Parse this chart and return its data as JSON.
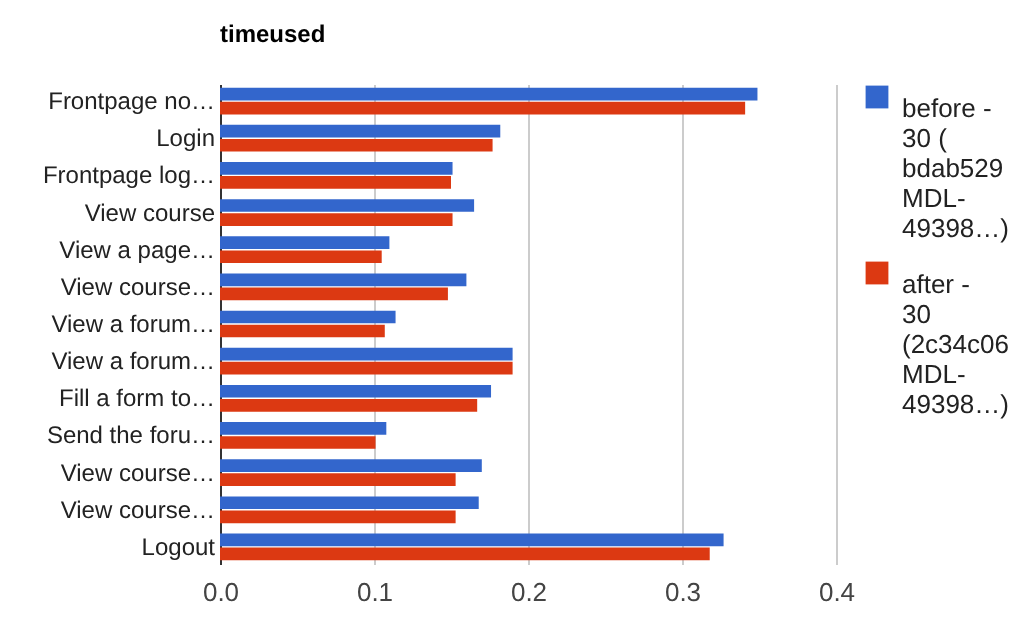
{
  "chart_data": {
    "type": "bar",
    "orientation": "horizontal",
    "title": "timeused",
    "categories": [
      "Frontpage no…",
      "Login",
      "Frontpage log…",
      "View course",
      "View a page…",
      "View course…",
      "View a forum…",
      "View a forum…",
      "Fill a form to…",
      "Send the foru…",
      "View course…",
      "View course…",
      "Logout"
    ],
    "series": [
      {
        "name": "before - 30 ( bdab529 MDL-49398…)",
        "color": "#3366cc",
        "values": [
          0.349,
          0.182,
          0.151,
          0.165,
          0.11,
          0.16,
          0.114,
          0.19,
          0.176,
          0.108,
          0.17,
          0.168,
          0.327
        ]
      },
      {
        "name": "after - 30 (2c34c06 MDL-49398…)",
        "color": "#dc3912",
        "values": [
          0.341,
          0.177,
          0.15,
          0.151,
          0.105,
          0.148,
          0.107,
          0.19,
          0.167,
          0.101,
          0.153,
          0.153,
          0.318
        ]
      }
    ],
    "xlim": [
      0,
      0.4
    ],
    "xticks": [
      {
        "value": 0,
        "label": "0.0"
      },
      {
        "value": 0.1,
        "label": "0.1"
      },
      {
        "value": 0.2,
        "label": "0.2"
      },
      {
        "value": 0.3,
        "label": "0.3"
      },
      {
        "value": 0.4,
        "label": "0.4"
      }
    ],
    "grid": "x",
    "legend": "right"
  }
}
